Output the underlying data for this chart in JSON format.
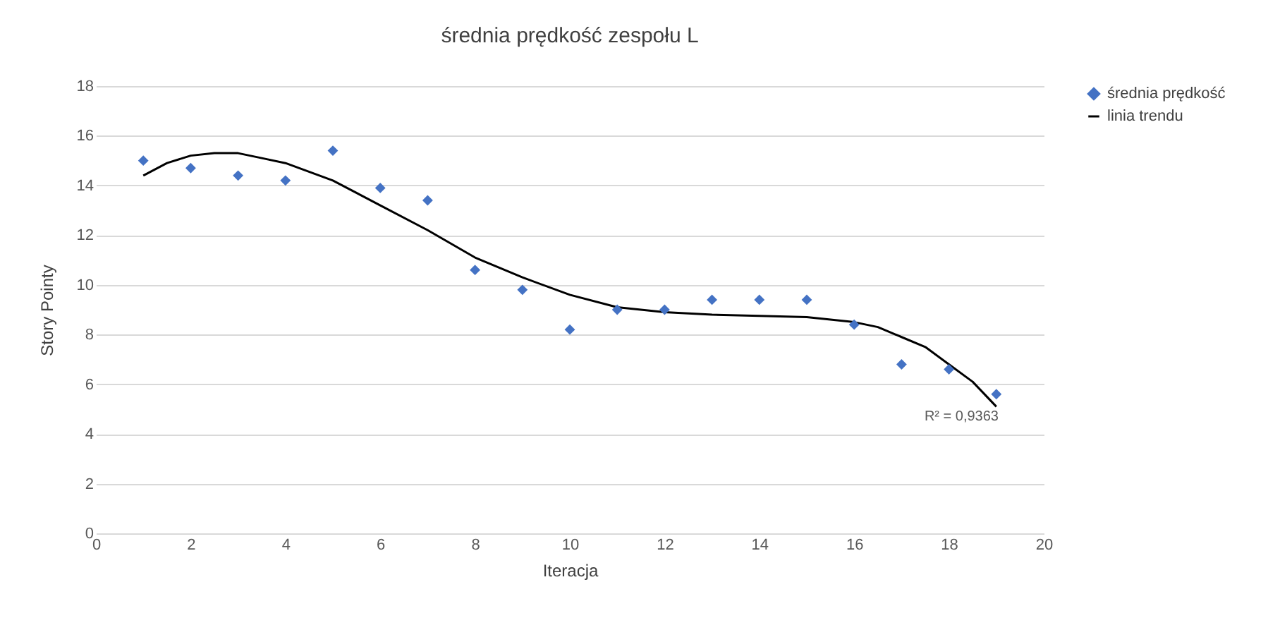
{
  "chart_data": {
    "type": "scatter",
    "title": "średnia prędkość zespołu L",
    "xlabel": "Iteracja",
    "ylabel": "Story Pointy",
    "xlim": [
      0,
      20
    ],
    "xticks": [
      0,
      2,
      4,
      6,
      8,
      10,
      12,
      14,
      16,
      18,
      20
    ],
    "ylim": [
      0,
      18
    ],
    "yticks": [
      0,
      2,
      4,
      6,
      8,
      10,
      12,
      14,
      16,
      18
    ],
    "grid": "y",
    "legend": "right",
    "series": [
      {
        "name": "średnia prędkość",
        "marker": "diamond",
        "color": "#4472c4",
        "x": [
          1,
          2,
          3,
          4,
          5,
          6,
          7,
          8,
          9,
          10,
          11,
          12,
          13,
          14,
          15,
          16,
          17,
          18,
          19
        ],
        "values": [
          15.0,
          14.7,
          14.4,
          14.2,
          15.4,
          13.9,
          13.4,
          10.6,
          9.8,
          8.2,
          9.0,
          9.0,
          9.4,
          9.4,
          9.4,
          8.4,
          6.8,
          6.6,
          5.6
        ]
      },
      {
        "name": "linia trendu",
        "type": "line",
        "color": "#000000",
        "line_style": "solid",
        "x": [
          1,
          1.5,
          2,
          2.5,
          3,
          3.5,
          4,
          5,
          6,
          7,
          8,
          9,
          10,
          11,
          12,
          13,
          14,
          15,
          16,
          16.5,
          17,
          17.5,
          18,
          18.5,
          19
        ],
        "values": [
          14.4,
          14.9,
          15.2,
          15.3,
          15.3,
          15.1,
          14.9,
          14.2,
          13.2,
          12.2,
          11.1,
          10.3,
          9.6,
          9.1,
          8.9,
          8.8,
          8.75,
          8.7,
          8.5,
          8.3,
          7.9,
          7.5,
          6.8,
          6.1,
          5.1
        ]
      }
    ],
    "annotations": [
      "R² = 0,9363"
    ]
  }
}
